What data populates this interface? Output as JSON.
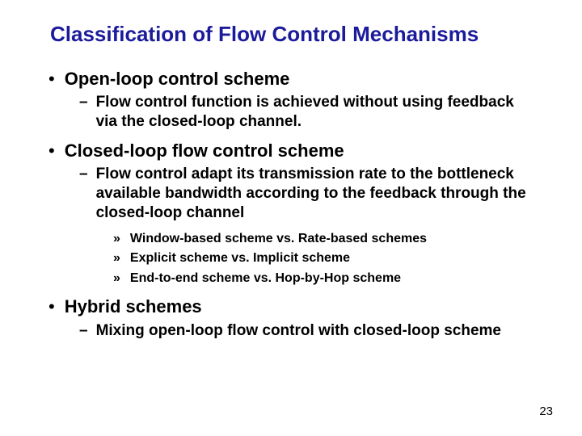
{
  "title": "Classification of Flow Control Mechanisms",
  "colors": {
    "title": "#1b1b9c",
    "text": "#000000",
    "background": "#ffffff"
  },
  "bullets": {
    "l1": "•",
    "l2": "–",
    "l3": "»"
  },
  "items": [
    {
      "label": "Open-loop control scheme",
      "sub": [
        {
          "label": "Flow control function is achieved without using feedback via the closed-loop channel."
        }
      ]
    },
    {
      "label": "Closed-loop flow control scheme",
      "sub": [
        {
          "label": "Flow control adapt its transmission rate to the bottleneck available bandwidth according to the feedback through the closed-loop channel",
          "sub": [
            {
              "label": "Window-based scheme vs. Rate-based schemes"
            },
            {
              "label": "Explicit scheme vs. Implicit scheme"
            },
            {
              "label": "End-to-end scheme vs. Hop-by-Hop scheme"
            }
          ]
        }
      ]
    },
    {
      "label": "Hybrid schemes",
      "sub": [
        {
          "label": "Mixing open-loop flow control with closed-loop scheme"
        }
      ]
    }
  ],
  "page_number": "23"
}
